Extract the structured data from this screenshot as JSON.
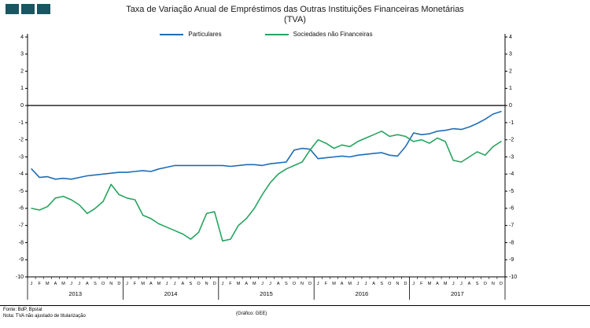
{
  "header": {
    "title_line1": "Taxa de Variação Anual de Empréstimos das Outras Instituições Financeiras Monetárias",
    "title_line2": "(TVA)",
    "logo_color": "#1a5562"
  },
  "footer": {
    "source": "Fonte: BdP, Bpstat",
    "note": "Nota: TVA não ajustado de titularização",
    "credit": "(Gráfico: GEE)"
  },
  "chart_data": {
    "type": "line",
    "title": "Taxa de Variação Anual de Empréstimos das Outras Instituições Financeiras Monetárias (TVA)",
    "ylim": [
      -10,
      4
    ],
    "ytick_step": 1,
    "grid": "off",
    "legend_position": "top-center",
    "axis_color": "#000000",
    "month_letters": [
      "J",
      "F",
      "M",
      "A",
      "M",
      "J",
      "J",
      "A",
      "S",
      "O",
      "N",
      "D"
    ],
    "years": [
      "2013",
      "2014",
      "2015",
      "2016",
      "2017"
    ],
    "series": [
      {
        "id": "particulares",
        "name": "Particulares",
        "color": "#1f6db6",
        "values": [
          -3.7,
          -4.2,
          -4.15,
          -4.3,
          -4.25,
          -4.3,
          -4.2,
          -4.1,
          -4.05,
          -4.0,
          -3.95,
          -3.9,
          -3.9,
          -3.85,
          -3.8,
          -3.85,
          -3.7,
          -3.6,
          -3.5,
          -3.5,
          -3.5,
          -3.5,
          -3.5,
          -3.5,
          -3.5,
          -3.55,
          -3.5,
          -3.45,
          -3.45,
          -3.5,
          -3.4,
          -3.35,
          -3.3,
          -2.6,
          -2.5,
          -2.55,
          -3.1,
          -3.05,
          -3.0,
          -2.95,
          -3.0,
          -2.9,
          -2.85,
          -2.8,
          -2.75,
          -2.9,
          -2.95,
          -2.4,
          -1.6,
          -1.7,
          -1.65,
          -1.5,
          -1.45,
          -1.35,
          -1.4,
          -1.25,
          -1.05,
          -0.8,
          -0.5,
          -0.35
        ]
      },
      {
        "id": "sociedades-nao-financeiras",
        "name": "Sociedades não Financeiras",
        "color": "#27a45f",
        "values": [
          -6.0,
          -6.1,
          -5.9,
          -5.4,
          -5.3,
          -5.5,
          -5.8,
          -6.3,
          -6.0,
          -5.6,
          -4.6,
          -5.2,
          -5.4,
          -5.5,
          -6.4,
          -6.6,
          -6.9,
          -7.1,
          -7.3,
          -7.5,
          -7.8,
          -7.4,
          -6.3,
          -6.2,
          -7.9,
          -7.8,
          -7.0,
          -6.6,
          -6.0,
          -5.2,
          -4.5,
          -4.0,
          -3.7,
          -3.5,
          -3.3,
          -2.6,
          -2.0,
          -2.2,
          -2.5,
          -2.3,
          -2.4,
          -2.1,
          -1.9,
          -1.7,
          -1.5,
          -1.8,
          -1.7,
          -1.8,
          -2.1,
          -2.0,
          -2.2,
          -1.9,
          -2.1,
          -3.2,
          -3.3,
          -3.0,
          -2.7,
          -2.9,
          -2.4,
          -2.1
        ]
      }
    ]
  }
}
